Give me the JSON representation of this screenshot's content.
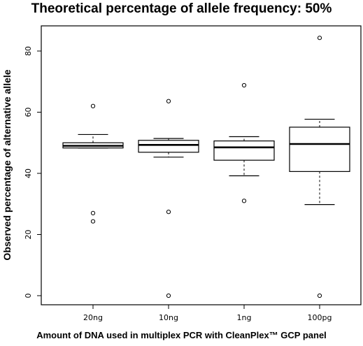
{
  "chart_data": {
    "type": "box",
    "title": "Theoretical percentage of allele frequency: 50%",
    "xlabel": "Amount of DNA used in multiplex PCR with CleanPlex™ GCP panel",
    "ylabel": "Observed percentage of alternative allele",
    "ylim": [
      -2.5,
      88
    ],
    "yticks": [
      0,
      20,
      40,
      60,
      80
    ],
    "grid": false,
    "categories": [
      "20ng",
      "10ng",
      "1ng",
      "100pg"
    ],
    "boxes": [
      {
        "category": "20ng",
        "whisker_low": 48.3,
        "q1": 48.3,
        "median": 49.0,
        "q3": 50.0,
        "whisker_high": 52.7,
        "outliers": [
          62.0,
          27.0,
          24.3
        ]
      },
      {
        "category": "10ng",
        "whisker_low": 45.3,
        "q1": 46.9,
        "median": 49.3,
        "q3": 50.8,
        "whisker_high": 51.4,
        "outliers": [
          63.6,
          27.4,
          0.0
        ]
      },
      {
        "category": "1ng",
        "whisker_low": 39.2,
        "q1": 44.3,
        "median": 48.5,
        "q3": 50.6,
        "whisker_high": 52.0,
        "outliers": [
          68.8,
          31.0
        ]
      },
      {
        "category": "100pg",
        "whisker_low": 29.8,
        "q1": 40.6,
        "median": 49.6,
        "q3": 55.1,
        "whisker_high": 57.7,
        "outliers": [
          84.3,
          0.0
        ]
      }
    ]
  }
}
